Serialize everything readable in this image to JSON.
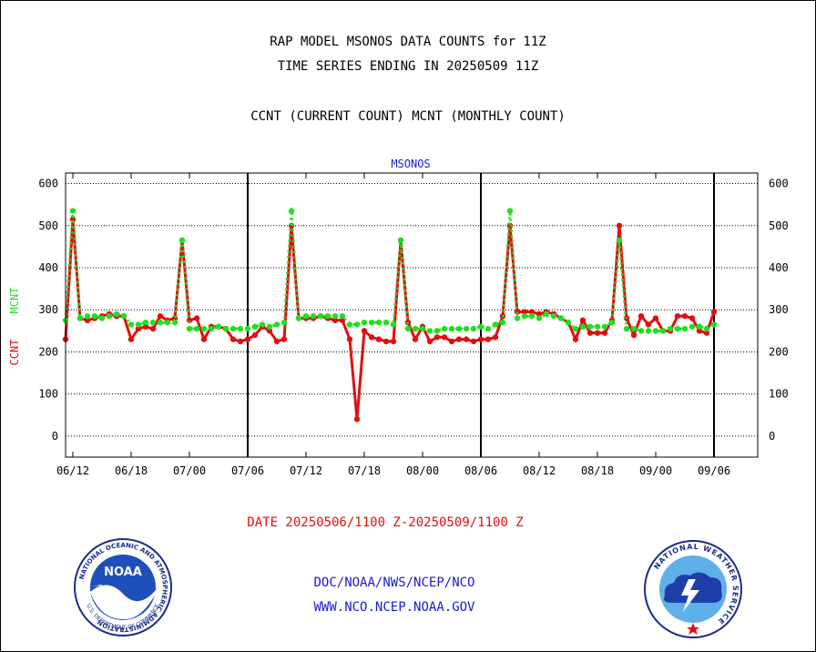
{
  "header": {
    "title_line1": "RAP MODEL MSONOS DATA COUNTS for 11Z",
    "title_line2": "TIME SERIES ENDING IN 20250509 11Z",
    "subtitle": "CCNT (CURRENT COUNT) MCNT (MONTHLY COUNT)"
  },
  "footer": {
    "date_range": "DATE 20250506/1100 Z-20250509/1100 Z",
    "credit_line1": "DOC/NOAA/NWS/NCEP/NCO",
    "credit_line2": "WWW.NCO.NCEP.NOAA.GOV"
  },
  "logos": {
    "noaa_text": "NOAA",
    "noaa_ring_text": "NATIONAL OCEANIC AND ATMOSPHERIC ADMINISTRATION",
    "noaa_bottom_text": "U.S. DEPARTMENT OF COMMERCE",
    "nws_ring_text": "NATIONAL WEATHER SERVICE"
  },
  "colors": {
    "ccnt": "#e01010",
    "mcnt": "#22dd22",
    "plot_title": "#1a1ad0",
    "axis": "#000000"
  },
  "chart_data": {
    "type": "line",
    "title": "MSONOS",
    "ylabel_series": [
      "CCNT",
      "MCNT"
    ],
    "ylim": [
      -50,
      625
    ],
    "yticks": [
      0,
      100,
      200,
      300,
      400,
      500,
      600
    ],
    "xlim": [
      0,
      95
    ],
    "xtick_positions": [
      1,
      9,
      17,
      25,
      33,
      41,
      49,
      57,
      65,
      73,
      81,
      89
    ],
    "xtick_labels": [
      "06/12",
      "06/18",
      "07/00",
      "07/06",
      "07/12",
      "07/18",
      "08/00",
      "08/06",
      "08/12",
      "08/18",
      "09/00",
      "09/06"
    ],
    "vlines_at": [
      25,
      57,
      89
    ],
    "grid": "dotted horizontal",
    "series": [
      {
        "name": "CCNT",
        "color": "#e01010",
        "values": [
          230,
          515,
          280,
          275,
          280,
          285,
          290,
          285,
          285,
          230,
          255,
          260,
          255,
          285,
          275,
          280,
          465,
          275,
          280,
          230,
          260,
          260,
          255,
          230,
          225,
          230,
          240,
          260,
          250,
          225,
          230,
          500,
          280,
          280,
          280,
          285,
          280,
          275,
          275,
          230,
          40,
          250,
          235,
          230,
          225,
          225,
          465,
          270,
          230,
          260,
          225,
          235,
          235,
          225,
          230,
          230,
          225,
          230,
          230,
          235,
          285,
          500,
          295,
          295,
          295,
          290,
          295,
          290,
          280,
          270,
          230,
          275,
          245,
          245,
          245,
          275,
          500,
          280,
          240,
          285,
          265,
          280,
          250,
          250,
          285,
          285,
          280,
          250,
          245,
          295
        ]
      },
      {
        "name": "MCNT",
        "color": "#22dd22",
        "values": [
          275,
          535,
          280,
          285,
          285,
          280,
          285,
          290,
          285,
          265,
          265,
          270,
          270,
          270,
          270,
          270,
          465,
          255,
          255,
          255,
          255,
          260,
          255,
          255,
          255,
          255,
          260,
          265,
          260,
          265,
          270,
          535,
          280,
          285,
          285,
          285,
          285,
          285,
          285,
          265,
          265,
          270,
          270,
          270,
          270,
          265,
          465,
          255,
          255,
          255,
          250,
          250,
          255,
          255,
          255,
          255,
          255,
          260,
          255,
          265,
          270,
          535,
          280,
          285,
          285,
          280,
          290,
          285,
          280,
          270,
          255,
          260,
          260,
          260,
          260,
          270,
          465,
          255,
          255,
          250,
          250,
          250,
          250,
          255,
          255,
          255,
          260,
          260,
          255,
          265
        ]
      }
    ]
  }
}
